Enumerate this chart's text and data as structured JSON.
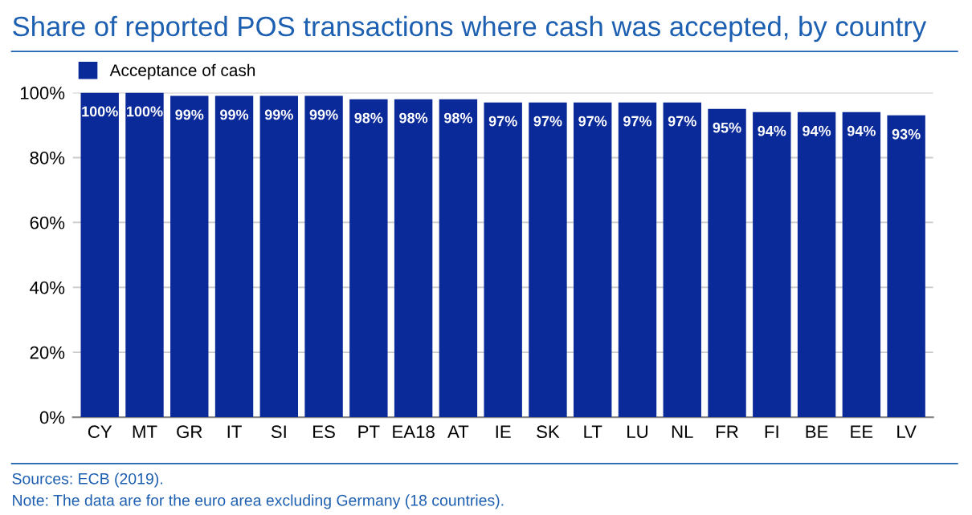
{
  "chart_data": {
    "type": "bar",
    "title": "Share of reported POS transactions where cash was accepted, by country",
    "categories": [
      "CY",
      "MT",
      "GR",
      "IT",
      "SI",
      "ES",
      "PT",
      "EA18",
      "AT",
      "IE",
      "SK",
      "LT",
      "LU",
      "NL",
      "FR",
      "FI",
      "BE",
      "EE",
      "LV"
    ],
    "series": [
      {
        "name": "Acceptance of cash",
        "color": "#0b2a99",
        "values": [
          100,
          100,
          99,
          99,
          99,
          99,
          98,
          98,
          98,
          97,
          97,
          97,
          97,
          97,
          95,
          94,
          94,
          94,
          93
        ],
        "value_labels": [
          "100%",
          "100%",
          "99%",
          "99%",
          "99%",
          "99%",
          "98%",
          "98%",
          "98%",
          "97%",
          "97%",
          "97%",
          "97%",
          "97%",
          "95%",
          "94%",
          "94%",
          "94%",
          "93%"
        ]
      }
    ],
    "ylim": [
      0,
      100
    ],
    "yticks": [
      {
        "value": 0,
        "label": "0%"
      },
      {
        "value": 20,
        "label": "20%"
      },
      {
        "value": 40,
        "label": "40%"
      },
      {
        "value": 60,
        "label": "60%"
      },
      {
        "value": 80,
        "label": "80%"
      },
      {
        "value": 100,
        "label": "100%"
      }
    ],
    "grid": "y",
    "legend": "top left",
    "annotations": [
      "Sources: ECB (2019).",
      "Note: The data are for the euro area excluding Germany (18 countries)."
    ]
  }
}
